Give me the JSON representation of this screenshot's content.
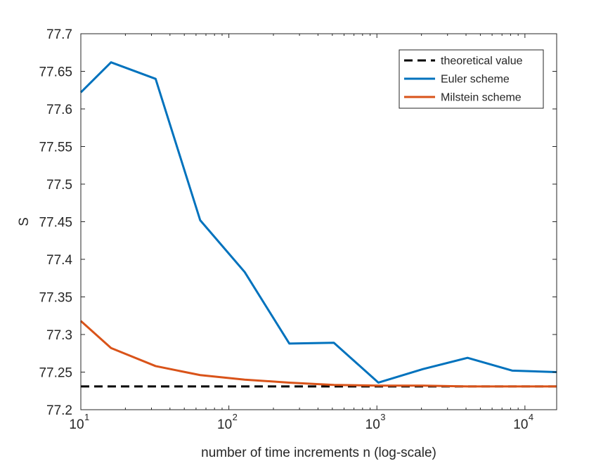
{
  "chart_data": {
    "type": "line",
    "xlabel": "number of time increments n (log-scale)",
    "ylabel": "S",
    "xscale": "log",
    "xlim": [
      10,
      16384
    ],
    "ylim": [
      77.2,
      77.7
    ],
    "grid": false,
    "legend_position": "top-right",
    "x_ticks": [
      10,
      100,
      1000,
      10000
    ],
    "x_tick_labels": [
      {
        "base": "10",
        "exp": "1"
      },
      {
        "base": "10",
        "exp": "2"
      },
      {
        "base": "10",
        "exp": "3"
      },
      {
        "base": "10",
        "exp": "4"
      }
    ],
    "y_ticks": [
      77.2,
      77.25,
      77.3,
      77.35,
      77.4,
      77.45,
      77.5,
      77.55,
      77.6,
      77.65,
      77.7
    ],
    "y_tick_labels": [
      "77.2",
      "77.25",
      "77.3",
      "77.35",
      "77.4",
      "77.45",
      "77.5",
      "77.55",
      "77.6",
      "77.65",
      "77.7"
    ],
    "series": [
      {
        "name": "theoretical value",
        "color": "#000000",
        "style": "dashed",
        "x": [
          10,
          16384
        ],
        "y": [
          77.231,
          77.231
        ]
      },
      {
        "name": "Euler scheme",
        "color": "#0072bd",
        "style": "solid",
        "x": [
          10,
          16,
          32,
          64,
          128,
          256,
          512,
          1024,
          2048,
          4096,
          8192,
          16384
        ],
        "y": [
          77.622,
          77.662,
          77.64,
          77.452,
          77.383,
          77.288,
          77.289,
          77.236,
          77.254,
          77.269,
          77.252,
          77.25
        ]
      },
      {
        "name": "Milstein scheme",
        "color": "#d95319",
        "style": "solid",
        "x": [
          10,
          16,
          32,
          64,
          128,
          256,
          512,
          1024,
          2048,
          4096,
          8192,
          16384
        ],
        "y": [
          77.318,
          77.282,
          77.258,
          77.246,
          77.24,
          77.236,
          77.233,
          77.232,
          77.232,
          77.231,
          77.231,
          77.231
        ]
      }
    ]
  }
}
